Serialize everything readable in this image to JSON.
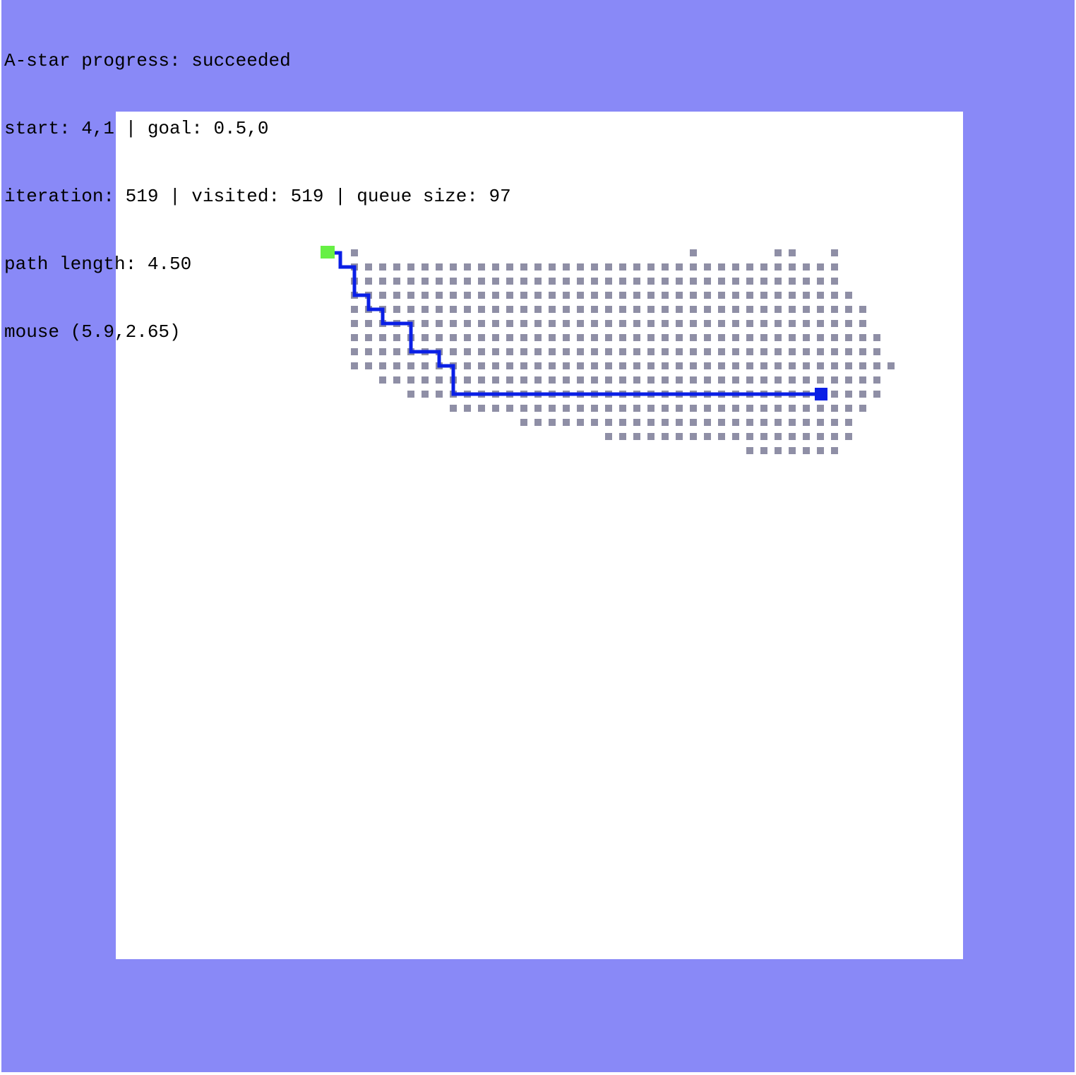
{
  "hud": {
    "title": "A-star progress: succeeded",
    "endpoints": "start: 4,1 | goal: 0.5,0",
    "stats": "iteration: 519 | visited: 519 | queue size: 97",
    "path": "path length: 4.50",
    "mouse": "mouse (5.9,2.65)"
  },
  "colors": {
    "background": "#8989f7",
    "board": "#ffffff",
    "visited": "#8f8fa6",
    "path": "#0a1fe6",
    "start_marker": "#66f044",
    "goal_marker": "#0a1fe6"
  },
  "search": {
    "status": "succeeded",
    "start": [
      4,
      1
    ],
    "goal": [
      0.5,
      0
    ],
    "iteration": 519,
    "visited": 519,
    "queue_size": 97,
    "path_length": 4.5,
    "mouse": [
      5.9,
      2.65
    ]
  }
}
